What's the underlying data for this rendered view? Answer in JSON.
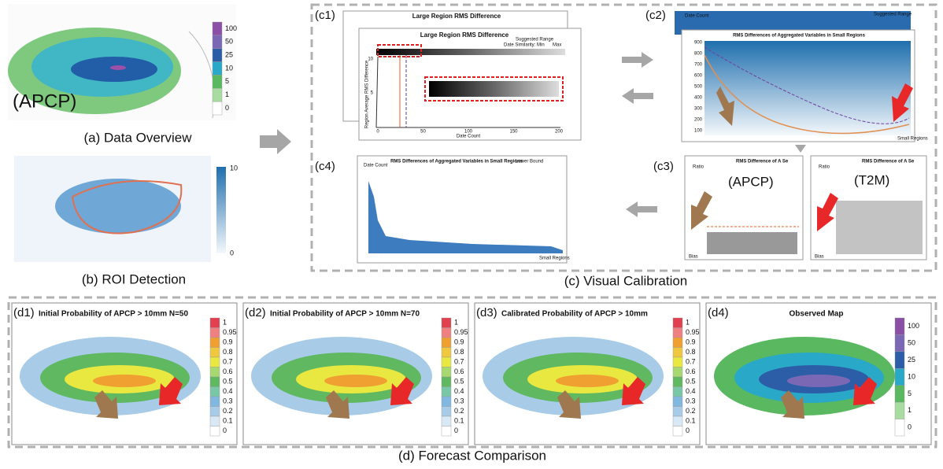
{
  "a": {
    "label": "(APCP)",
    "caption": "(a) Data Overview",
    "colorbar": [
      "100",
      "50",
      "25",
      "10",
      "5",
      "1",
      "0"
    ]
  },
  "b": {
    "caption": "(b) ROI Detection",
    "colorbar": [
      "10",
      "0"
    ]
  },
  "c": {
    "caption": "(c) Visual Calibration",
    "c1": {
      "label": "(c1)",
      "title_back": "Large Region RMS Difference",
      "title": "Large Region RMS Difference",
      "legend_range": "Suggested Range",
      "legend_similarity": "Date Similarity: Min",
      "legend_max": "Max",
      "ylabel": "Region Average RMS Difference",
      "xlabel": "Date Count",
      "xticks": [
        "0",
        "50",
        "100",
        "150",
        "200"
      ],
      "yticks": [
        "10",
        "5"
      ]
    },
    "c2": {
      "label": "(c2)",
      "title": "RMS Differences of Aggregated Variables in Small Regions",
      "legend_range": "Suggested Range",
      "ylabel": "Date Count",
      "xlabel": "Small Regions",
      "yticks": [
        "900",
        "800",
        "700",
        "600",
        "500",
        "400",
        "300",
        "200",
        "100"
      ]
    },
    "c3": {
      "label": "(c3)",
      "title": "RMS Difference of A Se",
      "ylabel": "Ratio",
      "var_left": "(APCP)",
      "var_right": "(T2M)",
      "xlabel": "Bias"
    },
    "c4": {
      "label": "(c4)",
      "title": "RMS Differences of Aggregated Variables in Small Regions",
      "legend": "Lower Bound",
      "ylabel": "Date Count",
      "xlabel": "Small Regions"
    }
  },
  "d": {
    "caption": "(d) Forecast Comparison",
    "panels": [
      {
        "label": "(d1)",
        "title": "Initial Probability of APCP > 10mm N=50"
      },
      {
        "label": "(d2)",
        "title": "Initial Probability of APCP > 10mm N=70"
      },
      {
        "label": "(d3)",
        "title": "Calibrated Probability of APCP > 10mm"
      },
      {
        "label": "(d4)",
        "title": "Observed Map"
      }
    ],
    "prob_colorbar": [
      "1",
      "0.95",
      "0.9",
      "0.8",
      "0.7",
      "0.6",
      "0.5",
      "0.4",
      "0.3",
      "0.2",
      "0.1",
      "0"
    ],
    "obs_colorbar": [
      "100",
      "50",
      "25",
      "10",
      "5",
      "1",
      "0"
    ]
  }
}
